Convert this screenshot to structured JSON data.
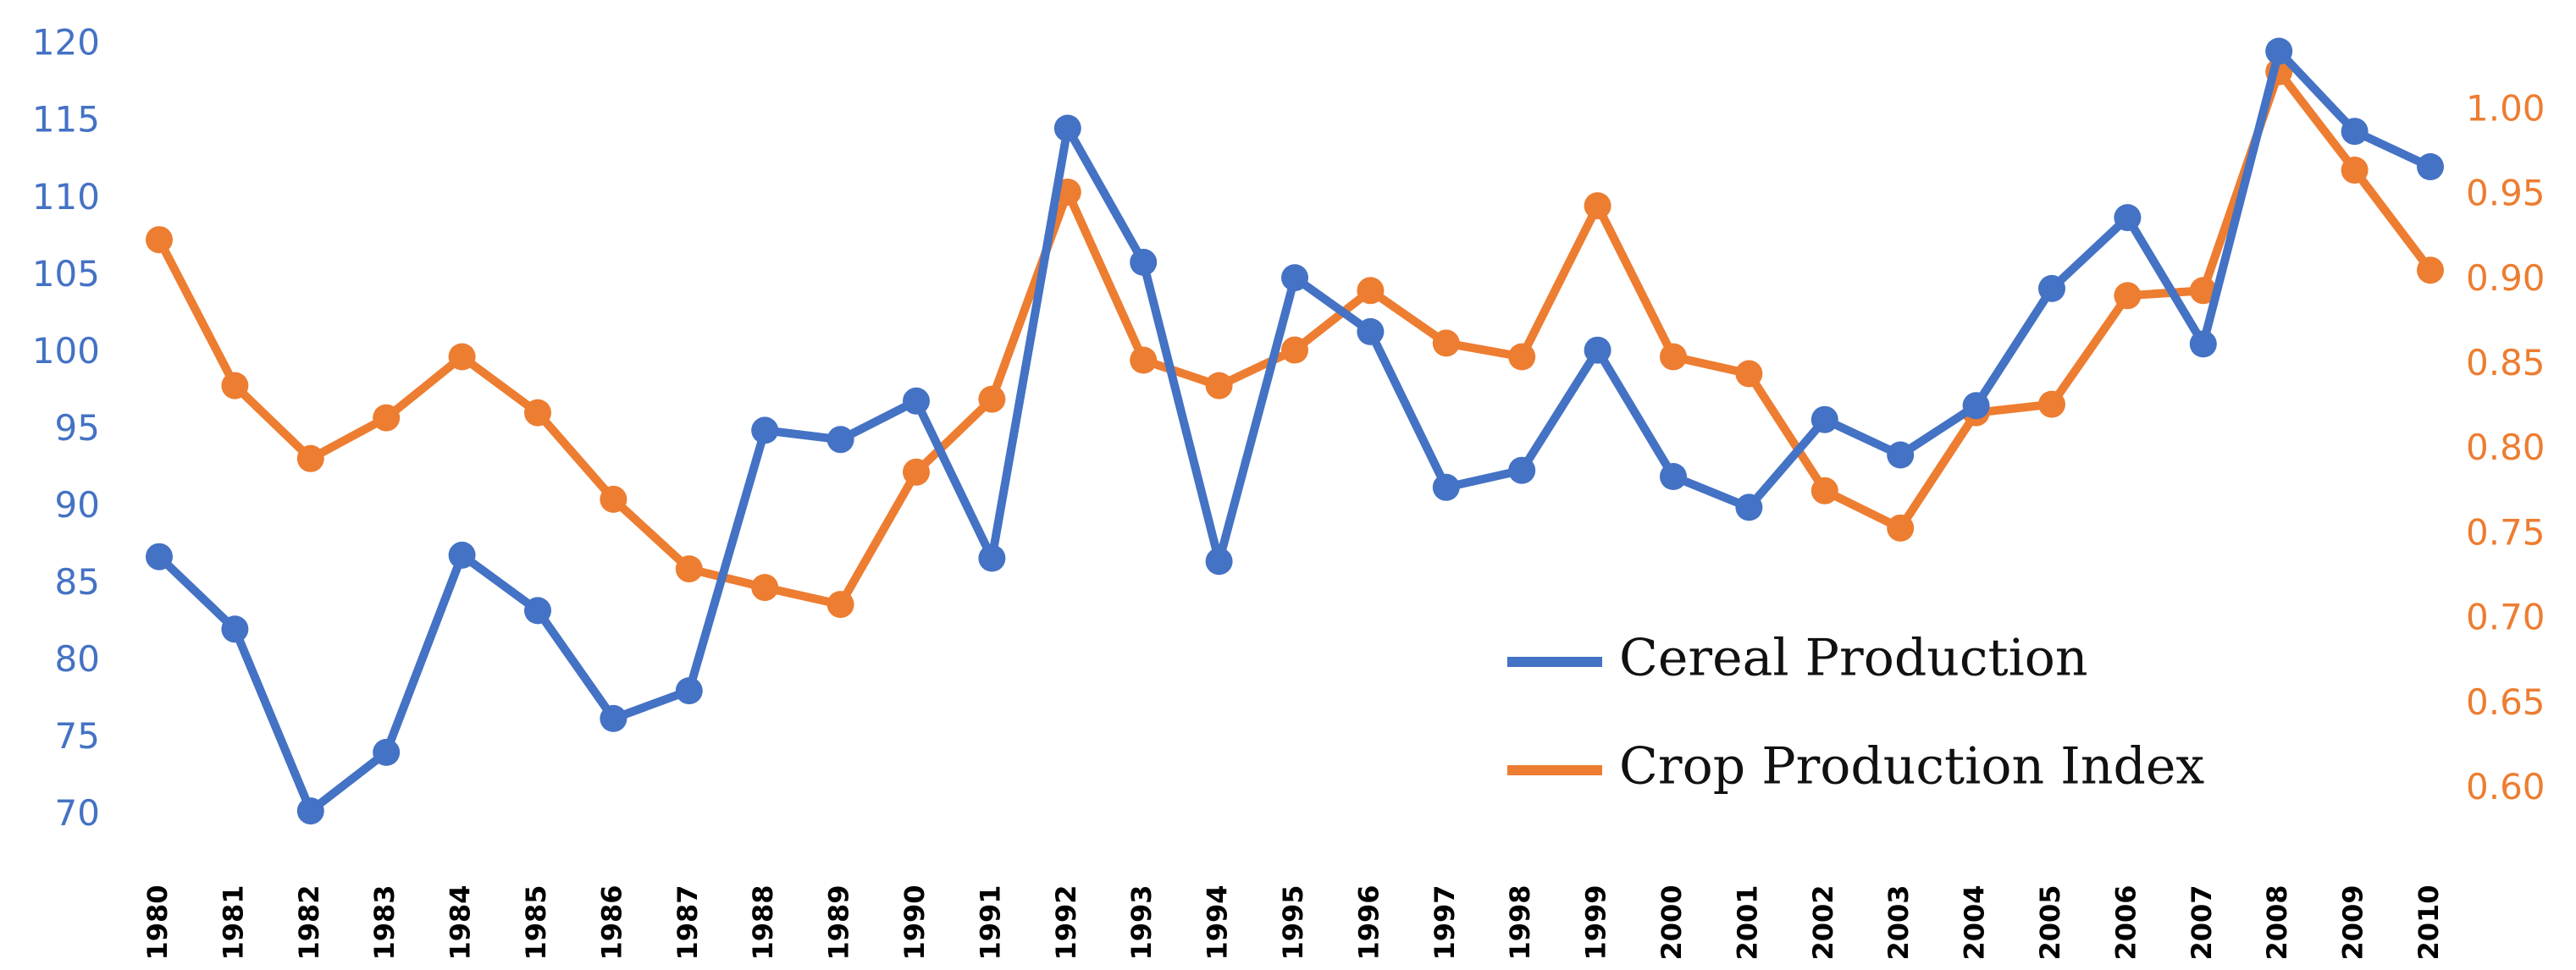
{
  "chart_data": {
    "type": "line",
    "title": "",
    "xlabel": "",
    "ylabel": "",
    "x": [
      "1980",
      "1981",
      "1982",
      "1983",
      "1984",
      "1985",
      "1986",
      "1987",
      "1988",
      "1989",
      "1990",
      "1991",
      "1992",
      "1993",
      "1994",
      "1995",
      "1996",
      "1997",
      "1998",
      "1999",
      "2000",
      "2001",
      "2002",
      "2003",
      "2004",
      "2005",
      "2006",
      "2007",
      "2008",
      "2009",
      "2010"
    ],
    "y_left_ticks": [
      "70",
      "75",
      "80",
      "85",
      "90",
      "95",
      "100",
      "105",
      "110",
      "115",
      "120"
    ],
    "y_left_range": [
      68,
      121
    ],
    "y_right_ticks": [
      "0.60",
      "0.65",
      "0.70",
      "0.75",
      "0.80",
      "0.85",
      "0.90",
      "0.95",
      "1.00"
    ],
    "y_right_range": [
      0.5664,
      1.0478
    ],
    "grid": false,
    "legend_position": "bottom-right",
    "series": [
      {
        "name": "Cereal Production",
        "axis": "left",
        "color": "#4472C4",
        "values": [
          86.8,
          82.1,
          70.3,
          74.1,
          86.9,
          83.3,
          76.3,
          78.1,
          95.0,
          94.4,
          96.9,
          86.7,
          114.6,
          105.9,
          86.5,
          104.9,
          101.4,
          91.3,
          92.4,
          100.2,
          92.0,
          90.0,
          95.7,
          93.4,
          96.6,
          104.2,
          108.8,
          100.6,
          119.6,
          114.4,
          112.1
        ]
      },
      {
        "name": "Crop Production Index",
        "axis": "right",
        "color": "#ED7D31",
        "values": [
          0.924,
          0.838,
          0.795,
          0.819,
          0.855,
          0.822,
          0.771,
          0.73,
          0.719,
          0.709,
          0.787,
          0.83,
          0.952,
          0.853,
          0.838,
          0.859,
          0.894,
          0.863,
          0.855,
          0.944,
          0.855,
          0.845,
          0.776,
          0.754,
          0.822,
          0.827,
          0.891,
          0.894,
          1.023,
          0.965,
          0.906
        ]
      }
    ]
  }
}
